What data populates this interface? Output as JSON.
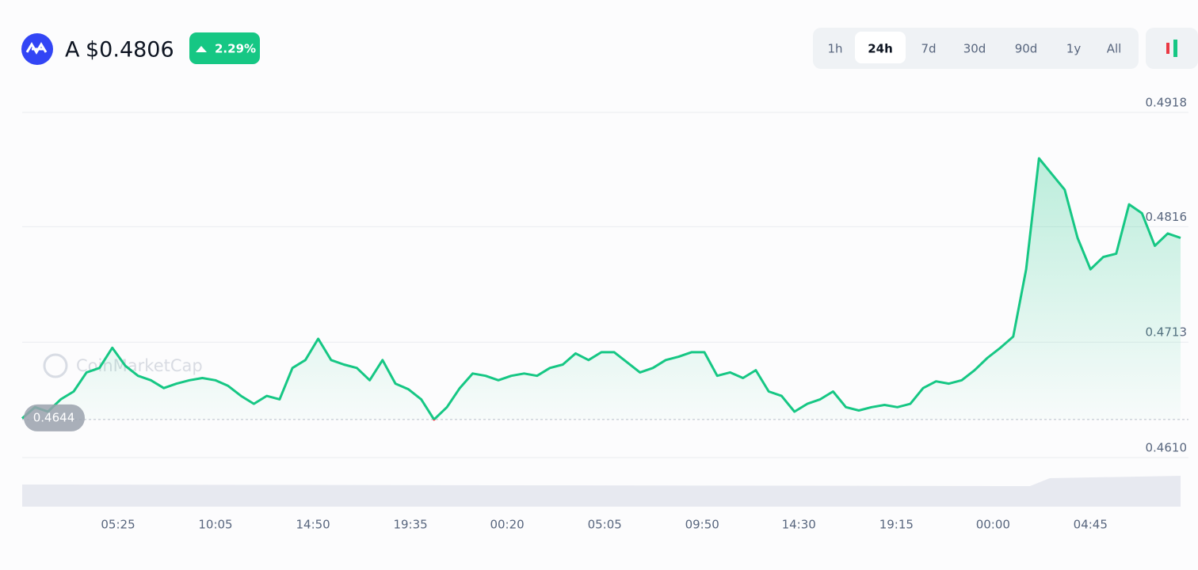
{
  "header": {
    "symbol": "A",
    "price": "$0.4806",
    "change": "2.29%",
    "ranges": [
      "1h",
      "24h",
      "7d",
      "30d",
      "90d",
      "1y",
      "All"
    ],
    "active_range": "24h"
  },
  "chart_data": {
    "type": "line",
    "watermark": "CoinMarketCap",
    "series": [
      {
        "color": "#16c784",
        "down_color": "#ea3943",
        "values": [
          0.4645,
          0.4655,
          0.4651,
          0.4662,
          0.4669,
          0.4686,
          0.469,
          0.4708,
          0.4692,
          0.4683,
          0.4679,
          0.4672,
          0.4676,
          0.4679,
          0.4681,
          0.4679,
          0.4674,
          0.4665,
          0.4658,
          0.4665,
          0.4662,
          0.469,
          0.4697,
          0.4716,
          0.4697,
          0.4693,
          0.469,
          0.4679,
          0.4697,
          0.4676,
          0.4671,
          0.4662,
          0.4644,
          0.4655,
          0.4672,
          0.4685,
          0.4683,
          0.4679,
          0.4683,
          0.4685,
          0.4683,
          0.469,
          0.4693,
          0.4703,
          0.4697,
          0.4704,
          0.4704,
          0.4695,
          0.4686,
          0.469,
          0.4697,
          0.47,
          0.4704,
          0.4704,
          0.4683,
          0.4686,
          0.4681,
          0.4688,
          0.4669,
          0.4665,
          0.4651,
          0.4658,
          0.4662,
          0.4669,
          0.4655,
          0.4652,
          0.4655,
          0.4657,
          0.4655,
          0.4658,
          0.4672,
          0.4678,
          0.4676,
          0.4679,
          0.4688,
          0.4699,
          0.4708,
          0.4718,
          0.4778,
          0.4877,
          0.4863,
          0.4849,
          0.4806,
          0.4778,
          0.4789,
          0.4792,
          0.4836,
          0.4828,
          0.4799,
          0.481,
          0.4806
        ]
      }
    ],
    "baseline": 0.4644,
    "xlim": [
      0,
      90
    ],
    "xticks": [
      {
        "value": 7.45,
        "label": "05:25"
      },
      {
        "value": 15.02,
        "label": "10:05"
      },
      {
        "value": 22.6,
        "label": "14:50"
      },
      {
        "value": 30.17,
        "label": "19:35"
      },
      {
        "value": 37.68,
        "label": "00:20"
      },
      {
        "value": 45.26,
        "label": "05:05"
      },
      {
        "value": 52.83,
        "label": "09:50"
      },
      {
        "value": 60.34,
        "label": "14:30"
      },
      {
        "value": 67.92,
        "label": "19:15"
      },
      {
        "value": 75.43,
        "label": "00:00"
      },
      {
        "value": 83.0,
        "label": "04:45"
      }
    ],
    "ylim": [
      0.461,
      0.4918
    ],
    "yticks": [
      {
        "value": 0.461,
        "label": "0.4610"
      },
      0.4713,
      0.4816,
      0.4918
    ],
    "grid": true
  }
}
